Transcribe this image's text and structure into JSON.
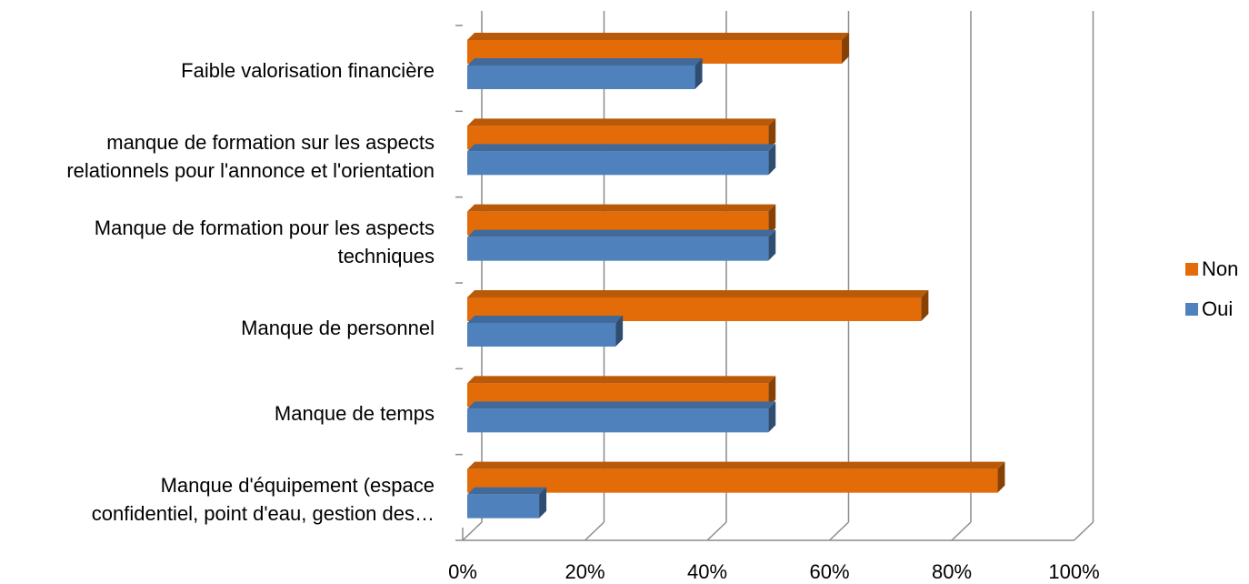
{
  "chart_data": {
    "type": "bar",
    "orientation": "horizontal",
    "style": "3d-clustered",
    "categories": [
      "Faible valorisation financière",
      "manque de formation sur les aspects relationnels pour l'annonce et l'orientation",
      "Manque de formation pour les aspects techniques",
      "Manque de personnel",
      "Manque de temps",
      "Manque d'équipement (espace confidentiel, point d'eau, gestion des…"
    ],
    "category_lines": [
      [
        "Faible valorisation financière"
      ],
      [
        "manque de formation sur les aspects",
        "relationnels pour l'annonce et l'orientation"
      ],
      [
        "Manque de formation pour les aspects",
        "techniques"
      ],
      [
        "Manque de personnel"
      ],
      [
        "Manque de temps"
      ],
      [
        "Manque d'équipement (espace",
        "confidentiel, point d'eau, gestion des…"
      ]
    ],
    "series": [
      {
        "name": "Non",
        "color": "#E36C09",
        "values": [
          62,
          50,
          50,
          75,
          50,
          87.5
        ]
      },
      {
        "name": "Oui",
        "color": "#4F81BD",
        "values": [
          38,
          50,
          50,
          25,
          50,
          12.5
        ]
      }
    ],
    "xlim": [
      0,
      100
    ],
    "x_ticks": [
      "0%",
      "20%",
      "40%",
      "60%",
      "80%",
      "100%"
    ],
    "grid": true,
    "legend_position": "right"
  }
}
